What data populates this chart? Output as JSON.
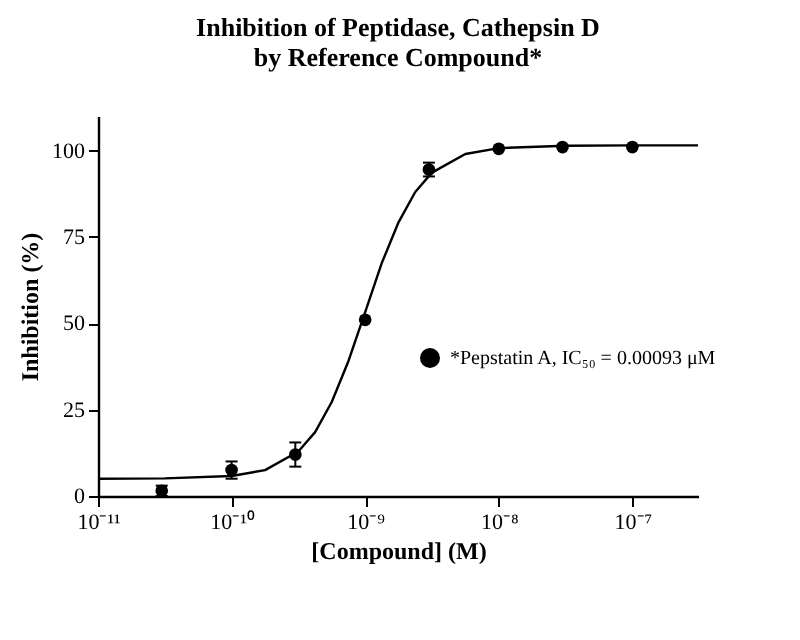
{
  "chart_data": {
    "type": "scatter",
    "title": [
      "Inhibition of  Peptidase, Cathepsin D",
      "by Reference Compound*"
    ],
    "xlabel": "[Compound] (M)",
    "ylabel": "Inhibition (%)",
    "log": "x",
    "xlim": [
      1e-11,
      3.1e-07
    ],
    "xticks": [
      {
        "value": 1e-11,
        "label": "10⁻¹¹"
      },
      {
        "value": 1e-10,
        "label": "10⁻¹⁰"
      },
      {
        "value": 1e-09,
        "label": "10⁻⁹"
      },
      {
        "value": 1e-08,
        "label": "10⁻⁸"
      },
      {
        "value": 1e-07,
        "label": "10⁻⁷"
      }
    ],
    "ylim": [
      0,
      110
    ],
    "yticks": [
      0,
      25,
      50,
      75,
      100
    ],
    "grid": false,
    "legend": "right",
    "marker": "circle",
    "series": [
      {
        "name": "*Pepstatin A, IC₅₀ = 0.00093 μM",
        "color": "#000000",
        "x": [
          3e-11,
          1e-10,
          3e-10,
          1e-09,
          3e-09,
          1e-08,
          3e-08,
          1e-07
        ],
        "values": [
          1.5,
          7.5,
          12,
          51,
          94.5,
          100.5,
          101,
          101
        ],
        "errors": [
          1.5,
          2.5,
          3.5,
          null,
          2,
          null,
          null,
          null
        ]
      },
      {
        "type": "line",
        "color": "#000000",
        "line_style": "solid",
        "marker": "none",
        "x": [
          1e-11,
          3.16e-11,
          1e-10,
          1.78e-10,
          3.16e-10,
          4.22e-10,
          5.62e-10,
          7.5e-10,
          1e-09,
          1.33e-09,
          1.78e-09,
          2.37e-09,
          3.16e-09,
          5.62e-09,
          1e-08,
          3.16e-08,
          1e-07,
          3.1e-07
        ],
        "values": [
          5.0,
          5.1,
          5.8,
          7.5,
          12.9,
          18.5,
          27.2,
          39.1,
          53.2,
          67.4,
          79.3,
          88,
          93.6,
          99,
          100.7,
          101.4,
          101.5,
          101.5
        ]
      }
    ]
  }
}
